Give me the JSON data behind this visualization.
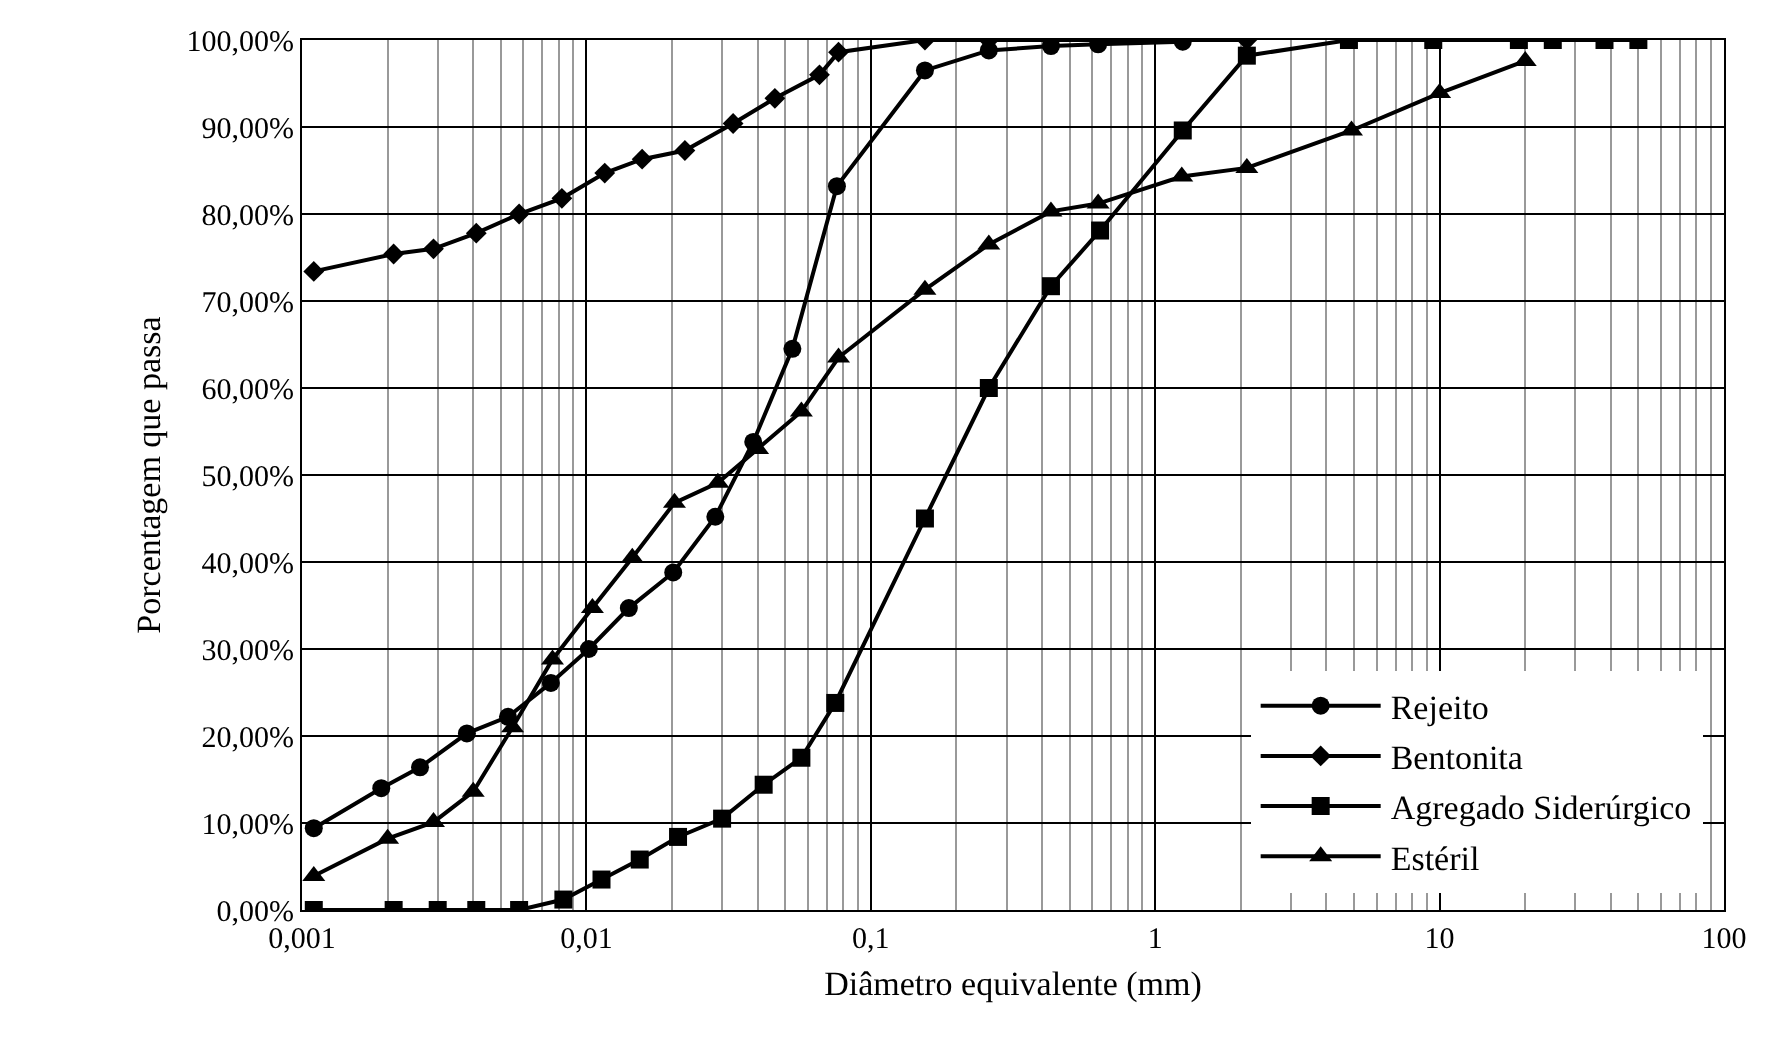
{
  "chart_data": {
    "type": "line",
    "xlabel": "Diâmetro equivalente (mm)",
    "ylabel": "Porcentagem que passa",
    "log": "x",
    "grid": true,
    "legend": "bottom right",
    "xlim": [
      0.001,
      100
    ],
    "xticks": [
      {
        "value": 0.001,
        "label": "0,001"
      },
      {
        "value": 0.01,
        "label": "0,01"
      },
      {
        "value": 0.1,
        "label": "0,1"
      },
      {
        "value": 1,
        "label": "1"
      },
      {
        "value": 10,
        "label": "10"
      },
      {
        "value": 100,
        "label": "100"
      }
    ],
    "ylim": [
      0,
      100
    ],
    "yticks": [
      {
        "value": 0,
        "label": "0,00%"
      },
      {
        "value": 10,
        "label": "10,00%"
      },
      {
        "value": 20,
        "label": "20,00%"
      },
      {
        "value": 30,
        "label": "30,00%"
      },
      {
        "value": 40,
        "label": "40,00%"
      },
      {
        "value": 50,
        "label": "50,00%"
      },
      {
        "value": 60,
        "label": "60,00%"
      },
      {
        "value": 70,
        "label": "70,00%"
      },
      {
        "value": 80,
        "label": "80,00%"
      },
      {
        "value": 90,
        "label": "90,00%"
      },
      {
        "value": 100,
        "label": "100,00%"
      }
    ],
    "series": [
      {
        "name": "Rejeito",
        "color": "#000000",
        "marker": "circle",
        "x": [
          0.0011,
          0.0019,
          0.0026,
          0.0038,
          0.0053,
          0.0075,
          0.0102,
          0.0141,
          0.0202,
          0.0284,
          0.0386,
          0.053,
          0.076,
          0.155,
          0.26,
          0.43,
          0.63,
          1.25
        ],
        "values": [
          9.4,
          14,
          16.4,
          20.3,
          22.2,
          26.1,
          30,
          34.7,
          38.8,
          45.2,
          53.8,
          64.5,
          83.2,
          96.5,
          98.8,
          99.3,
          99.5,
          99.8
        ]
      },
      {
        "name": "Bentonita",
        "color": "#000000",
        "marker": "diamond",
        "x": [
          0.0011,
          0.0021,
          0.0029,
          0.0041,
          0.0058,
          0.0082,
          0.0116,
          0.0157,
          0.0222,
          0.0328,
          0.046,
          0.066,
          0.077,
          0.155,
          0.26,
          0.43,
          0.63,
          1.25,
          2.1
        ],
        "values": [
          73.4,
          75.4,
          76,
          77.8,
          80,
          81.8,
          84.7,
          86.3,
          87.3,
          90.4,
          93.3,
          96,
          98.6,
          100,
          100,
          100,
          100,
          100,
          100
        ]
      },
      {
        "name": "Agregado Siderúrgico",
        "color": "#000000",
        "marker": "square",
        "x": [
          0.0011,
          0.0021,
          0.003,
          0.0041,
          0.0058,
          0.0083,
          0.0113,
          0.0154,
          0.021,
          0.03,
          0.042,
          0.057,
          0.075,
          0.155,
          0.26,
          0.43,
          0.64,
          1.25,
          2.1,
          4.8,
          9.5,
          19,
          25,
          38,
          50
        ],
        "values": [
          0,
          0,
          0,
          0,
          0,
          1.2,
          3.5,
          5.8,
          8.4,
          10.5,
          14.4,
          17.5,
          23.8,
          45,
          60,
          71.7,
          78.1,
          89.6,
          98.2,
          100,
          100,
          100,
          100,
          100,
          100
        ]
      },
      {
        "name": "Estéril",
        "color": "#000000",
        "marker": "triangle",
        "x": [
          0.0011,
          0.002,
          0.0029,
          0.004,
          0.0055,
          0.0076,
          0.0105,
          0.0145,
          0.0204,
          0.029,
          0.04,
          0.057,
          0.077,
          0.155,
          0.26,
          0.43,
          0.63,
          1.24,
          2.1,
          4.9,
          10,
          20
        ],
        "values": [
          3.9,
          8.2,
          10.1,
          13.6,
          21,
          28.8,
          34.7,
          40.5,
          46.8,
          49.1,
          53,
          57.3,
          63.5,
          71.3,
          76.5,
          80.3,
          81.2,
          84.3,
          85.3,
          89.6,
          93.9,
          97.6
        ]
      }
    ]
  }
}
